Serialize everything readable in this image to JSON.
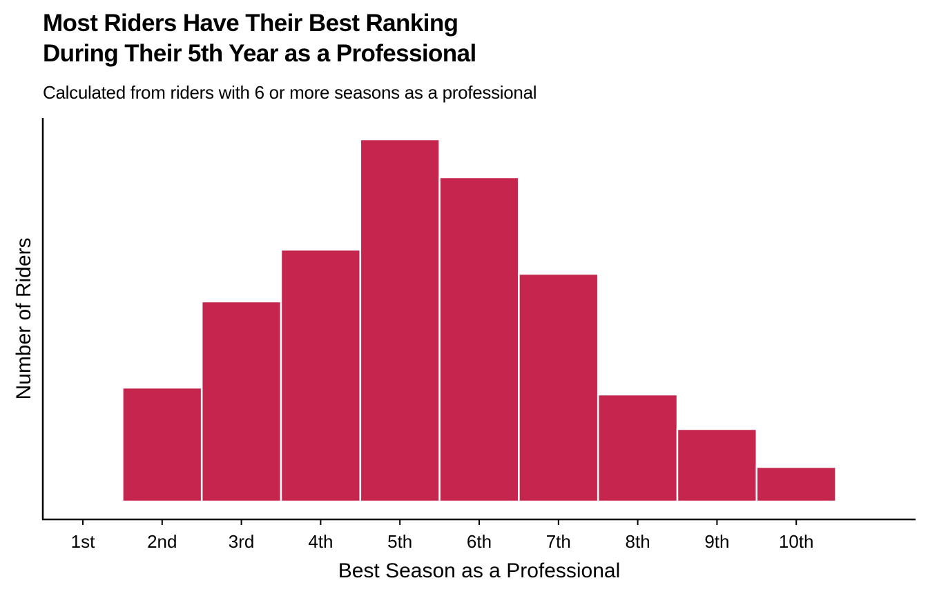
{
  "title_lines": [
    "Most Riders Have Their Best Ranking",
    "During Their 5th Year as a Professional"
  ],
  "subtitle": "Calculated from riders with 6 or more seasons as a professional",
  "chart_data": {
    "type": "bar",
    "title": "Most Riders Have Their Best Ranking During Their 5th Year as a Professional",
    "subtitle": "Calculated from riders with 6 or more seasons as a professional",
    "xlabel": "Best Season as a Professional",
    "ylabel": "Number of Riders",
    "categories": [
      "1st",
      "2nd",
      "3rd",
      "4th",
      "5th",
      "6th",
      "7th",
      "8th",
      "9th",
      "10th"
    ],
    "values": [
      0,
      16.5,
      29,
      36.5,
      52.5,
      47,
      33,
      15.5,
      10.5,
      5
    ],
    "ylim": [
      0,
      55
    ],
    "y_ticks_shown": false,
    "grid": false,
    "bar_color": "#c5264d",
    "bar_border_color": "#ffffff"
  }
}
